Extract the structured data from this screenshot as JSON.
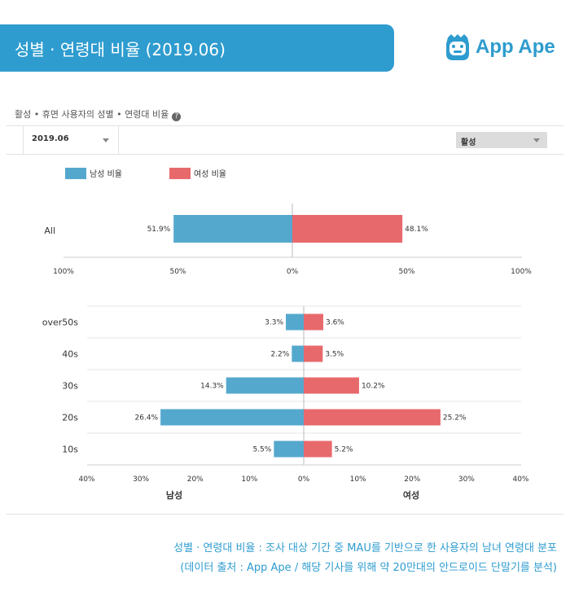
{
  "header": {
    "title": "성별 · 연령대 비율 (2019.06)",
    "logo_text": "App Ape"
  },
  "section": {
    "title": "활성 • 휴면 사용자의 성별 • 연령대 비율"
  },
  "filters": {
    "period": "2019.06",
    "status": "활성"
  },
  "colors": {
    "male": "#55a8cd",
    "female": "#e8696c",
    "brand": "#2e9ccf"
  },
  "chart_data": [
    {
      "type": "bar",
      "orientation": "horizontal-diverging",
      "title": "",
      "categories": [
        "All"
      ],
      "series": [
        {
          "name": "남성 비율",
          "values": [
            51.9
          ]
        },
        {
          "name": "여성 비율",
          "values": [
            48.1
          ]
        }
      ],
      "xlim": [
        -100,
        100
      ],
      "ticks": [
        "100%",
        "50%",
        "0%",
        "50%",
        "100%"
      ],
      "legend": "top-left"
    },
    {
      "type": "bar",
      "orientation": "horizontal-diverging",
      "title": "",
      "categories": [
        "over50s",
        "40s",
        "30s",
        "20s",
        "10s"
      ],
      "series": [
        {
          "name": "남성",
          "values": [
            3.3,
            2.2,
            14.3,
            26.4,
            5.5
          ]
        },
        {
          "name": "여성",
          "values": [
            3.6,
            3.5,
            10.2,
            25.2,
            5.2
          ]
        }
      ],
      "xlim": [
        -40,
        40
      ],
      "ticks": [
        "40%",
        "30%",
        "20%",
        "10%",
        "0%",
        "10%",
        "20%",
        "30%",
        "40%"
      ],
      "xlabel_left": "남성",
      "xlabel_right": "여성"
    }
  ],
  "caption": {
    "line1": "성별 · 연령대 비율 : 조사 대상 기간 중 MAU를 기반으로 한 사용자의 남녀 연령대 분포",
    "line2": "(데이터 출처 : App Ape / 해당 기사를 위해 약 20만대의 안드로이드 단말기를 분석)"
  }
}
